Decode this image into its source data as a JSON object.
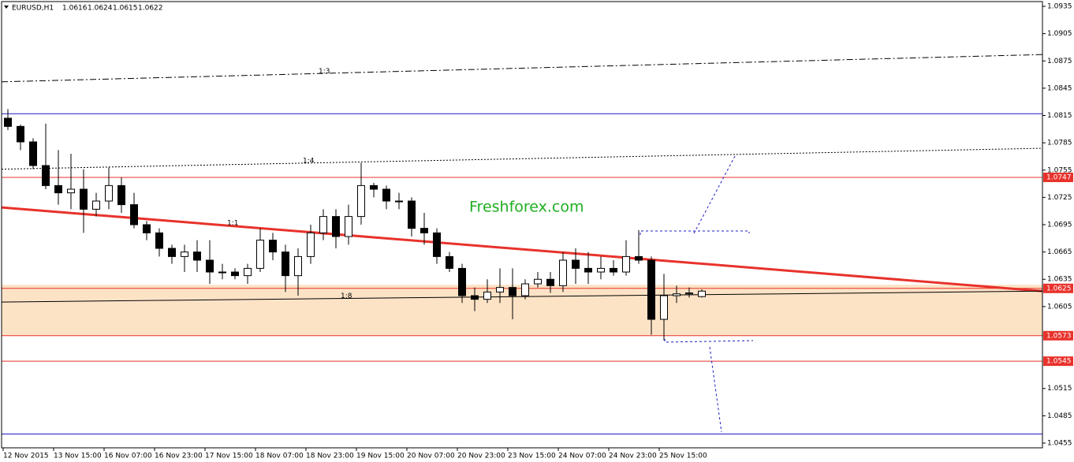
{
  "chart_data": {
    "type": "candlestick",
    "symbol": "EURUSD,H1",
    "header_ohlc": [
      1.0616,
      1.0624,
      1.0615,
      1.0622
    ],
    "watermark": "Freshforex.com",
    "xlim": [
      -0.5,
      329.5
    ],
    "ylim": [
      1.04498,
      1.09402
    ],
    "xticks": [
      {
        "value": 0,
        "label": "12 Nov 2015"
      },
      {
        "value": 16,
        "label": "13 Nov 15:00"
      },
      {
        "value": 32,
        "label": "16 Nov 07:00"
      },
      {
        "value": 48,
        "label": "16 Nov 23:00"
      },
      {
        "value": 64,
        "label": "17 Nov 15:00"
      },
      {
        "value": 80,
        "label": "18 Nov 07:00"
      },
      {
        "value": 96,
        "label": "18 Nov 23:00"
      },
      {
        "value": 112,
        "label": "19 Nov 15:00"
      },
      {
        "value": 128,
        "label": "20 Nov 07:00"
      },
      {
        "value": 144,
        "label": "20 Nov 23:00"
      },
      {
        "value": 160,
        "label": "23 Nov 15:00"
      },
      {
        "value": 176,
        "label": "24 Nov 07:00"
      },
      {
        "value": 192,
        "label": "24 Nov 23:00"
      },
      {
        "value": 208,
        "label": "25 Nov 15:00"
      }
    ],
    "yticks": [
      1.0935,
      1.0905,
      1.0875,
      1.0845,
      1.0815,
      1.0785,
      1.0755,
      1.0725,
      1.0695,
      1.0665,
      1.0635,
      1.0605,
      1.0515,
      1.0485,
      1.0455
    ],
    "zone": {
      "from": 1.0629,
      "to": 1.0573,
      "color": "#fde3c6"
    },
    "levels": [
      {
        "value": 1.0747,
        "color": "#e8322b",
        "labeled": true
      },
      {
        "value": 1.0625,
        "color": "#e8322b",
        "labeled": true
      },
      {
        "value": 1.0573,
        "color": "#e8322b",
        "labeled": true
      },
      {
        "value": 1.0545,
        "color": "#e8322b",
        "labeled": true
      },
      {
        "value": 1.0817,
        "color": "#1c1cc4",
        "labeled": false
      },
      {
        "value": 1.0465,
        "color": "#1c1cc4",
        "labeled": false
      }
    ],
    "trendlines": [
      {
        "label": "1:3",
        "color": "#000",
        "style": "dashdot",
        "width": 1,
        "x": [
          -0.5,
          329.5
        ],
        "y": [
          1.0852,
          1.0882
        ],
        "label_x": 100
      },
      {
        "label": "1:4",
        "color": "#000",
        "style": "dotted",
        "width": 1,
        "x": [
          -0.5,
          329.5
        ],
        "y": [
          1.0756,
          1.0779
        ],
        "label_x": 95
      },
      {
        "label": "1:1",
        "color": "#e8322b",
        "style": "solid",
        "width": 3,
        "x": [
          -0.5,
          329.5
        ],
        "y": [
          1.0714,
          1.0622
        ],
        "label_x": 71
      },
      {
        "label": "1:8",
        "color": "#000",
        "style": "solid",
        "width": 1,
        "x": [
          -0.5,
          329.5
        ],
        "y": [
          1.061,
          1.0622
        ],
        "label_x": 107
      }
    ],
    "x": [
      0,
      4,
      8,
      12,
      16,
      20,
      24,
      28,
      32,
      36,
      40,
      44,
      48,
      52,
      56,
      60,
      64,
      68,
      72,
      76,
      80,
      84,
      88,
      92,
      96,
      100,
      104,
      108,
      112,
      116,
      120,
      124,
      128,
      132,
      136,
      140,
      144,
      148,
      152,
      156,
      160,
      164,
      168,
      172,
      176,
      180,
      184,
      188,
      192,
      196,
      200,
      204,
      208,
      212,
      216,
      220
    ],
    "open": [
      1.0812,
      1.0803,
      1.0786,
      1.076,
      1.0738,
      1.073,
      1.0734,
      1.0712,
      1.0721,
      1.0738,
      1.0717,
      1.0695,
      1.0686,
      1.0669,
      1.066,
      1.0665,
      1.0656,
      1.0643,
      1.0643,
      1.0639,
      1.0647,
      1.0678,
      1.0665,
      1.0639,
      1.066,
      1.0686,
      1.0704,
      1.0682,
      1.0704,
      1.0738,
      1.0734,
      1.0721,
      1.0721,
      1.0691,
      1.0686,
      1.066,
      1.0647,
      1.0617,
      1.0613,
      1.0621,
      1.0626,
      1.0617,
      1.063,
      1.0635,
      1.0628,
      1.0656,
      1.0647,
      1.0643,
      1.0647,
      1.0643,
      1.066,
      1.0656,
      1.0591,
      1.0617,
      1.0619,
      1.0616
    ],
    "high": [
      1.0822,
      1.0805,
      1.079,
      1.0806,
      1.0777,
      1.0773,
      1.0756,
      1.073,
      1.0758,
      1.0747,
      1.073,
      1.0699,
      1.0691,
      1.0673,
      1.0673,
      1.0678,
      1.0678,
      1.0652,
      1.0647,
      1.0652,
      1.0691,
      1.0686,
      1.0673,
      1.0669,
      1.0695,
      1.0712,
      1.0712,
      1.0717,
      1.0763,
      1.0741,
      1.0738,
      1.073,
      1.0725,
      1.0708,
      1.0691,
      1.0665,
      1.0652,
      1.0626,
      1.0635,
      1.0647,
      1.0647,
      1.0635,
      1.0643,
      1.0643,
      1.0665,
      1.0669,
      1.0665,
      1.066,
      1.0656,
      1.0678,
      1.0689,
      1.066,
      1.0641,
      1.0628,
      1.0626,
      1.0624
    ],
    "low": [
      1.0799,
      1.0777,
      1.0756,
      1.0734,
      1.0717,
      1.0712,
      1.0686,
      1.0704,
      1.0712,
      1.0708,
      1.0691,
      1.0678,
      1.066,
      1.0652,
      1.0643,
      1.0643,
      1.063,
      1.0635,
      1.0635,
      1.063,
      1.0643,
      1.0656,
      1.0621,
      1.0617,
      1.0652,
      1.0678,
      1.0669,
      1.0673,
      1.0695,
      1.0725,
      1.0712,
      1.0712,
      1.0682,
      1.0673,
      1.0652,
      1.0643,
      1.0609,
      1.06,
      1.0609,
      1.0609,
      1.0591,
      1.0613,
      1.0626,
      1.062,
      1.0621,
      1.063,
      1.063,
      1.0635,
      1.0639,
      1.0639,
      1.0652,
      1.0574,
      1.0568,
      1.0609,
      1.0615,
      1.0615
    ],
    "close": [
      1.0803,
      1.0786,
      1.076,
      1.0738,
      1.073,
      1.0734,
      1.0712,
      1.0721,
      1.0738,
      1.0717,
      1.0695,
      1.0686,
      1.0669,
      1.066,
      1.0665,
      1.0656,
      1.0643,
      1.0643,
      1.0639,
      1.0647,
      1.0678,
      1.0665,
      1.0639,
      1.066,
      1.0686,
      1.0704,
      1.0682,
      1.0704,
      1.0738,
      1.0734,
      1.0721,
      1.0721,
      1.0691,
      1.0686,
      1.066,
      1.0647,
      1.0617,
      1.0613,
      1.0621,
      1.0626,
      1.0617,
      1.063,
      1.0635,
      1.0628,
      1.0656,
      1.0647,
      1.0643,
      1.0647,
      1.0643,
      1.066,
      1.0656,
      1.0591,
      1.0617,
      1.0619,
      1.062,
      1.0622
    ]
  }
}
